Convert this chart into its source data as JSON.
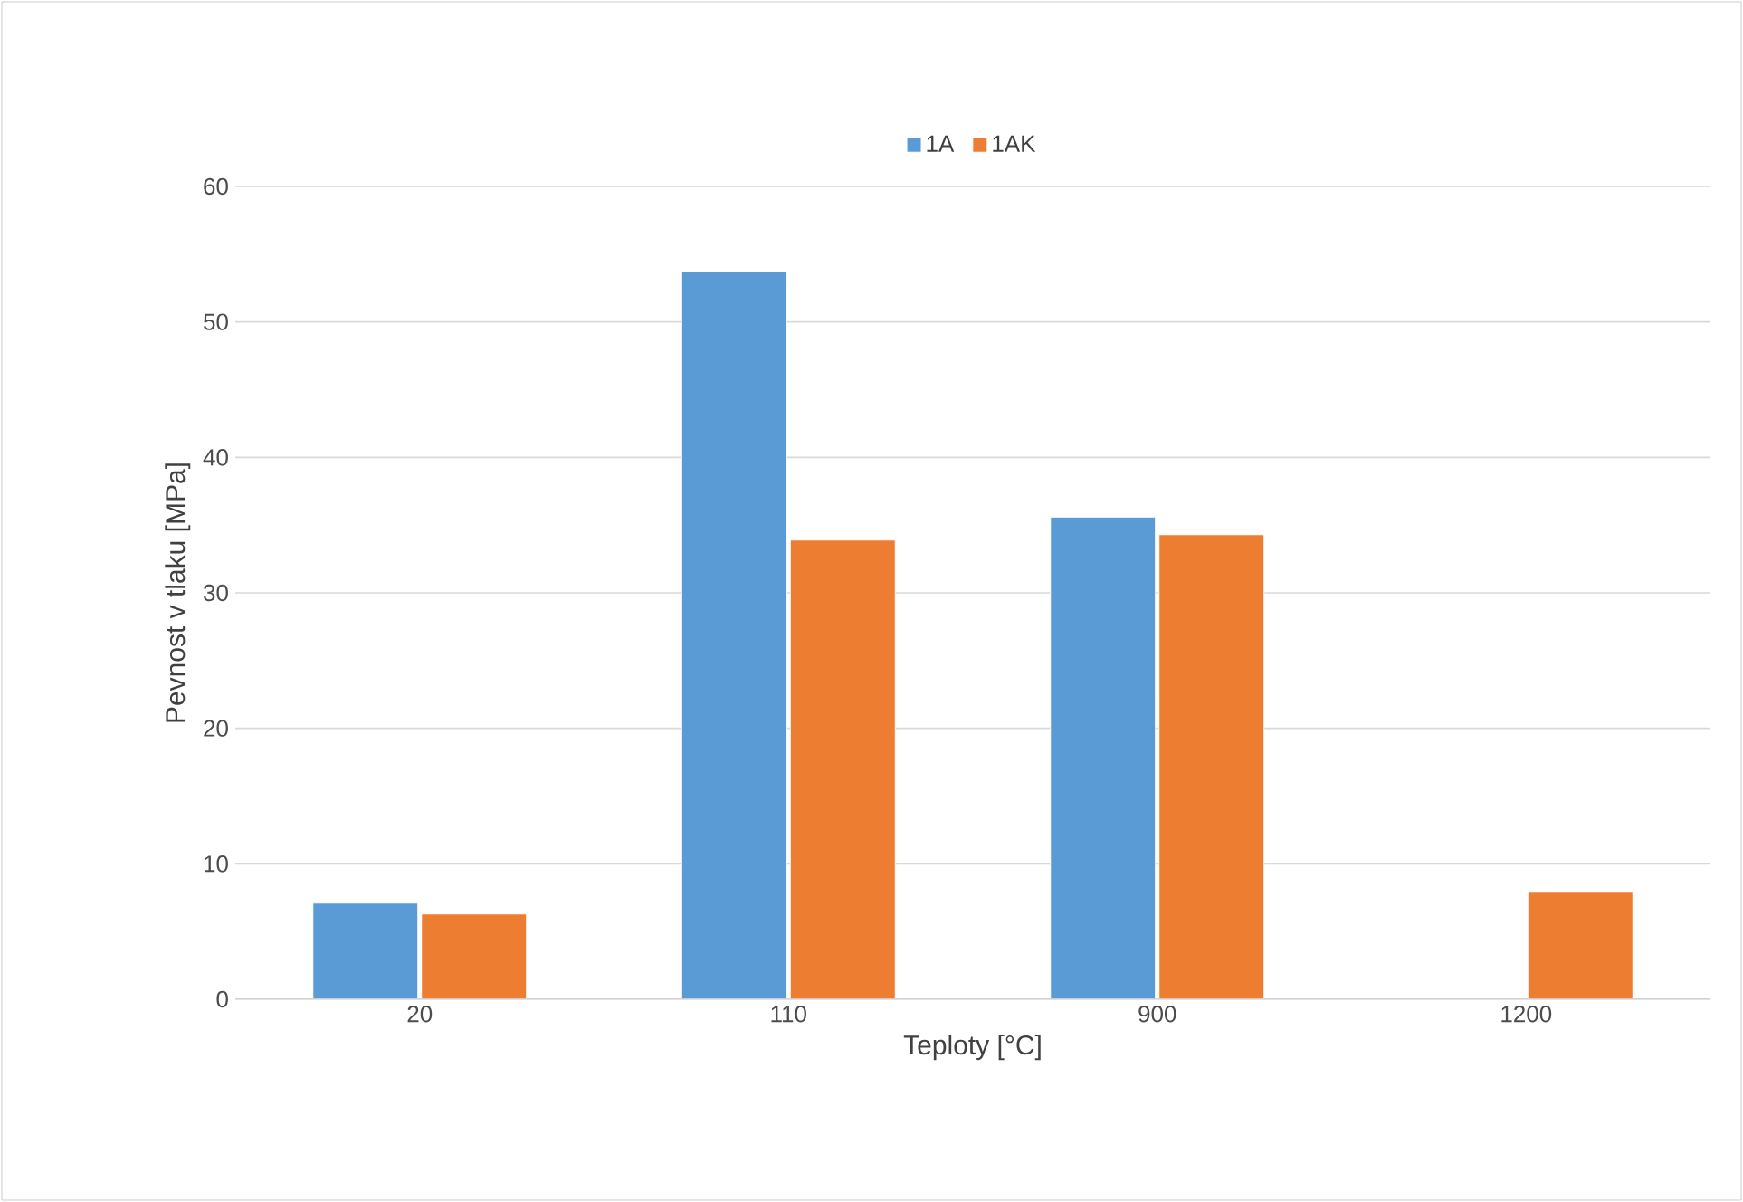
{
  "chart_data": {
    "type": "bar",
    "xlabel": "Teploty [°C]",
    "ylabel": "Pevnost v tlaku [MPa]",
    "categories": [
      "20",
      "110",
      "900",
      "1200"
    ],
    "series": [
      {
        "name": "1A",
        "color": "#5b9bd5",
        "values": [
          7.1,
          53.7,
          35.6,
          null
        ]
      },
      {
        "name": "1AK",
        "color": "#ed7d31",
        "values": [
          6.3,
          33.9,
          34.3,
          7.9
        ]
      }
    ],
    "ylim": [
      0,
      60
    ],
    "yticks": [
      0,
      10,
      20,
      30,
      40,
      50,
      60
    ],
    "grid": "y",
    "legend": "top"
  }
}
